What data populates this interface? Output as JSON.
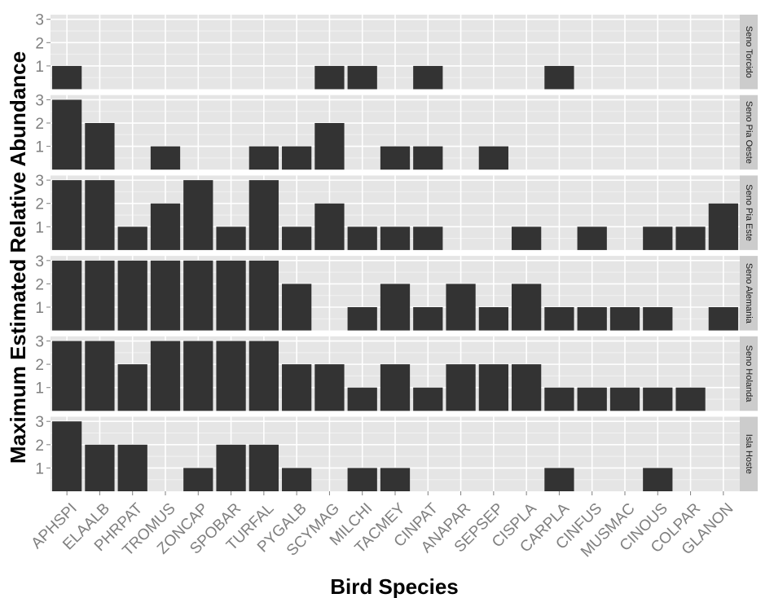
{
  "chart_data": {
    "type": "bar",
    "xlabel": "Bird Species",
    "ylabel": "Maximum Estimated Relative Abundance",
    "ylim": [
      0,
      3.2
    ],
    "yticks": [
      1,
      2,
      3
    ],
    "categories": [
      "APHSPI",
      "ELAALB",
      "PHRPAT",
      "TROMUS",
      "ZONCAP",
      "SPOBAR",
      "TURFAL",
      "PYGALB",
      "SCYMAG",
      "MILCHI",
      "TACMEY",
      "CINPAT",
      "ANAPAR",
      "SEPSEP",
      "CISPLA",
      "CARPLA",
      "CINFUS",
      "MUSMAC",
      "CINOUS",
      "COLPAR",
      "GLANON"
    ],
    "facets": [
      {
        "name": "Seno Torcido",
        "values": [
          1,
          0,
          0,
          0,
          0,
          0,
          0,
          0,
          1,
          1,
          0,
          1,
          0,
          0,
          0,
          1,
          0,
          0,
          0,
          0,
          0
        ]
      },
      {
        "name": "Seno Pia Oeste",
        "values": [
          3,
          2,
          0,
          1,
          0,
          0,
          1,
          1,
          2,
          0,
          1,
          1,
          0,
          1,
          0,
          0,
          0,
          0,
          0,
          0,
          0
        ]
      },
      {
        "name": "Seno Pia Este",
        "values": [
          3,
          3,
          1,
          2,
          3,
          1,
          3,
          1,
          2,
          1,
          1,
          1,
          0,
          0,
          1,
          0,
          1,
          0,
          1,
          1,
          2
        ]
      },
      {
        "name": "Seno Alemania",
        "values": [
          3,
          3,
          3,
          3,
          3,
          3,
          3,
          2,
          0,
          1,
          2,
          1,
          2,
          1,
          2,
          1,
          1,
          1,
          1,
          0,
          1
        ]
      },
      {
        "name": "Seno Holanda",
        "values": [
          3,
          3,
          2,
          3,
          3,
          3,
          3,
          2,
          2,
          1,
          2,
          1,
          2,
          2,
          2,
          1,
          1,
          1,
          1,
          1,
          0
        ]
      },
      {
        "name": "Isla Hoste",
        "values": [
          3,
          2,
          2,
          0,
          1,
          2,
          2,
          1,
          0,
          1,
          1,
          0,
          0,
          0,
          0,
          1,
          0,
          0,
          1,
          0,
          0
        ]
      }
    ],
    "colors": {
      "bar": "#333333",
      "panel": "#e5e5e5",
      "grid_major": "#ffffff",
      "grid_minor": "#f2f2f2",
      "strip": "#cccccc",
      "tick_text": "#7f7f7f"
    }
  }
}
